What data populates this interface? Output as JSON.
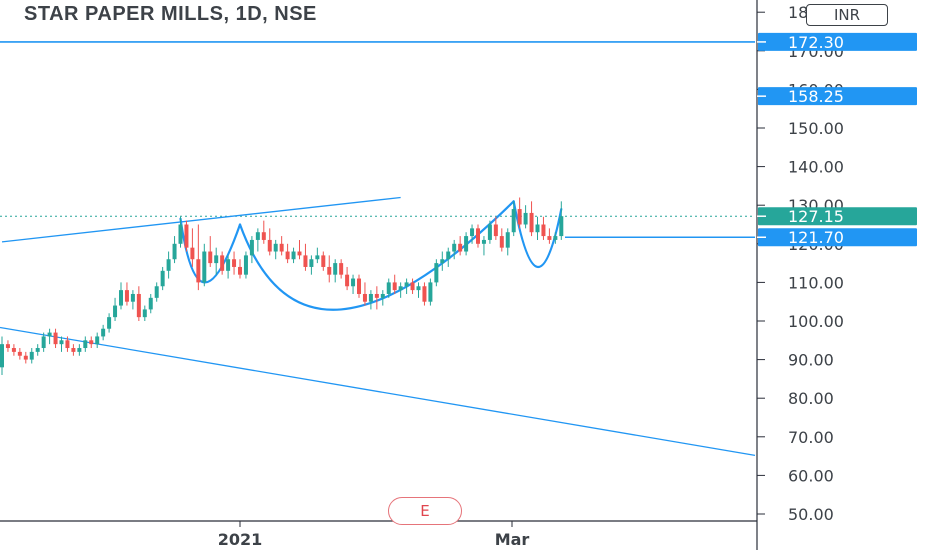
{
  "header": {
    "title": "STAR PAPER MILLS, 1D, NSE",
    "currency": "INR"
  },
  "colors": {
    "up": "#26a69a",
    "down": "#ef5350",
    "drawing": "#2196f3",
    "axis_text": "#3d4248",
    "price_badge": "#26a69a",
    "level_badge": "#2196f3"
  },
  "event_marker": "E",
  "chart_data": {
    "type": "candlestick",
    "title": "STAR PAPER MILLS, 1D, NSE",
    "y_ticks": [
      "50.00",
      "60.00",
      "70.00",
      "80.00",
      "90.00",
      "100.00",
      "110.00",
      "120.00",
      "130.00",
      "140.00",
      "150.00",
      "160.00",
      "170.00",
      "180.00"
    ],
    "y_range": [
      47,
      184
    ],
    "x_labels": [
      "2021",
      "Mar"
    ],
    "current_price": "127.15",
    "levels": [
      {
        "label": "172.30",
        "value": 172.3
      },
      {
        "label": "158.25",
        "value": 158.25
      },
      {
        "label": "121.70",
        "value": 121.7
      }
    ],
    "candles": [
      [
        88,
        96,
        86,
        94
      ],
      [
        94,
        95,
        92,
        93
      ],
      [
        93,
        94,
        91,
        92
      ],
      [
        92,
        93,
        90,
        91
      ],
      [
        91,
        92,
        89,
        90
      ],
      [
        90,
        93,
        89,
        92
      ],
      [
        92,
        94,
        91,
        93
      ],
      [
        93,
        97,
        92,
        96
      ],
      [
        96,
        98,
        94,
        97
      ],
      [
        97,
        98,
        93,
        94
      ],
      [
        94,
        96,
        92,
        95
      ],
      [
        95,
        96,
        92,
        93
      ],
      [
        93,
        94,
        91,
        92
      ],
      [
        92,
        94,
        91,
        93
      ],
      [
        93,
        96,
        92,
        95
      ],
      [
        95,
        96,
        93,
        94
      ],
      [
        94,
        97,
        93,
        96
      ],
      [
        96,
        99,
        95,
        98
      ],
      [
        98,
        102,
        97,
        101
      ],
      [
        101,
        106,
        100,
        104
      ],
      [
        104,
        110,
        103,
        108
      ],
      [
        108,
        110,
        104,
        105
      ],
      [
        105,
        108,
        103,
        107
      ],
      [
        107,
        109,
        100,
        101
      ],
      [
        101,
        104,
        100,
        103
      ],
      [
        103,
        107,
        102,
        106
      ],
      [
        106,
        110,
        105,
        109
      ],
      [
        109,
        114,
        108,
        113
      ],
      [
        113,
        118,
        111,
        116
      ],
      [
        116,
        122,
        115,
        120
      ],
      [
        120,
        127,
        119,
        125
      ],
      [
        125,
        126,
        118,
        119
      ],
      [
        119,
        124,
        114,
        116
      ],
      [
        116,
        125,
        108,
        110
      ],
      [
        110,
        120,
        109,
        118
      ],
      [
        118,
        122,
        114,
        115
      ],
      [
        115,
        119,
        112,
        117
      ],
      [
        117,
        118,
        112,
        113
      ],
      [
        113,
        117,
        111,
        116
      ],
      [
        116,
        118,
        112,
        114
      ],
      [
        114,
        116,
        111,
        112
      ],
      [
        112,
        118,
        111,
        117
      ],
      [
        117,
        122,
        115,
        121
      ],
      [
        121,
        124,
        118,
        123
      ],
      [
        123,
        126,
        120,
        121
      ],
      [
        121,
        124,
        117,
        118
      ],
      [
        118,
        121,
        116,
        120
      ],
      [
        120,
        122,
        117,
        118
      ],
      [
        118,
        120,
        115,
        116
      ],
      [
        116,
        119,
        115,
        118
      ],
      [
        118,
        121,
        116,
        117
      ],
      [
        117,
        120,
        113,
        114
      ],
      [
        114,
        117,
        112,
        116
      ],
      [
        116,
        119,
        115,
        117
      ],
      [
        117,
        118,
        113,
        114
      ],
      [
        114,
        117,
        110,
        112
      ],
      [
        112,
        116,
        110,
        115
      ],
      [
        115,
        116,
        111,
        112
      ],
      [
        112,
        114,
        108,
        109
      ],
      [
        109,
        112,
        107,
        111
      ],
      [
        111,
        112,
        106,
        107
      ],
      [
        107,
        110,
        104,
        105
      ],
      [
        105,
        108,
        103,
        107
      ],
      [
        107,
        109,
        103,
        106
      ],
      [
        106,
        108,
        104,
        107
      ],
      [
        107,
        111,
        106,
        110
      ],
      [
        110,
        112,
        107,
        108
      ],
      [
        108,
        110,
        106,
        109
      ],
      [
        109,
        111,
        107,
        110
      ],
      [
        110,
        111,
        107,
        108
      ],
      [
        108,
        110,
        106,
        109
      ],
      [
        109,
        110,
        104,
        105
      ],
      [
        105,
        111,
        104,
        110
      ],
      [
        110,
        116,
        109,
        115
      ],
      [
        115,
        118,
        113,
        116
      ],
      [
        116,
        119,
        114,
        118
      ],
      [
        118,
        121,
        116,
        120
      ],
      [
        120,
        122,
        117,
        118
      ],
      [
        118,
        123,
        117,
        122
      ],
      [
        122,
        125,
        120,
        124
      ],
      [
        124,
        125,
        119,
        120
      ],
      [
        120,
        122,
        117,
        121
      ],
      [
        121,
        126,
        120,
        125
      ],
      [
        125,
        127,
        121,
        122
      ],
      [
        122,
        124,
        118,
        119
      ],
      [
        119,
        124,
        117,
        123
      ],
      [
        123,
        131,
        122,
        129
      ],
      [
        129,
        132,
        124,
        125
      ],
      [
        125,
        130,
        124,
        128
      ],
      [
        128,
        131,
        122,
        123
      ],
      [
        123,
        127,
        121,
        125
      ],
      [
        125,
        127,
        121,
        122
      ],
      [
        122,
        124,
        120,
        121
      ],
      [
        121,
        123,
        120,
        122
      ],
      [
        122,
        131,
        121,
        127.15
      ]
    ],
    "annotations": {
      "upper_trendline": [
        [
          0,
          120.5
        ],
        [
          67,
          132
        ]
      ],
      "lower_trendline": [
        [
          -1,
          98.5
        ],
        [
          89,
          75
        ]
      ],
      "cup_handle_arcs": [
        [
          [
            30,
            126.5
          ],
          [
            34,
            110
          ],
          [
            40,
            125
          ]
        ],
        [
          [
            40,
            125
          ],
          [
            57,
            103
          ],
          [
            86,
            131
          ]
        ],
        [
          [
            86,
            131
          ],
          [
            90,
            114
          ],
          [
            94,
            129
          ]
        ]
      ]
    }
  }
}
